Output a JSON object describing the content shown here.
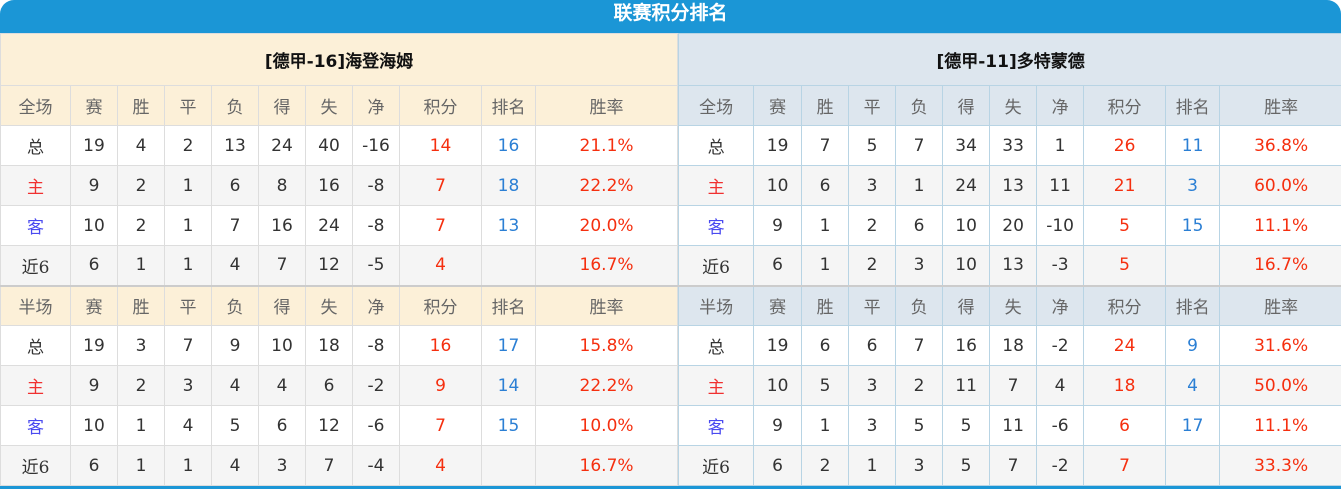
{
  "title": "联赛积分排名",
  "colors": {
    "brand": "#1b96d6",
    "points": "#f52f0f",
    "rank": "#2b7fd4"
  },
  "teams": [
    {
      "name": "[德甲-16]海登海姆",
      "full_header": [
        "全场",
        "赛",
        "胜",
        "平",
        "负",
        "得",
        "失",
        "净",
        "积分",
        "排名",
        "胜率"
      ],
      "full_rows": [
        [
          "总",
          "19",
          "4",
          "2",
          "13",
          "24",
          "40",
          "-16",
          "14",
          "16",
          "21.1%"
        ],
        [
          "主",
          "9",
          "2",
          "1",
          "6",
          "8",
          "16",
          "-8",
          "7",
          "18",
          "22.2%"
        ],
        [
          "客",
          "10",
          "2",
          "1",
          "7",
          "16",
          "24",
          "-8",
          "7",
          "13",
          "20.0%"
        ],
        [
          "近6",
          "6",
          "1",
          "1",
          "4",
          "7",
          "12",
          "-5",
          "4",
          "",
          "16.7%"
        ]
      ],
      "half_header": [
        "半场",
        "赛",
        "胜",
        "平",
        "负",
        "得",
        "失",
        "净",
        "积分",
        "排名",
        "胜率"
      ],
      "half_rows": [
        [
          "总",
          "19",
          "3",
          "7",
          "9",
          "10",
          "18",
          "-8",
          "16",
          "17",
          "15.8%"
        ],
        [
          "主",
          "9",
          "2",
          "3",
          "4",
          "4",
          "6",
          "-2",
          "9",
          "14",
          "22.2%"
        ],
        [
          "客",
          "10",
          "1",
          "4",
          "5",
          "6",
          "12",
          "-6",
          "7",
          "15",
          "10.0%"
        ],
        [
          "近6",
          "6",
          "1",
          "1",
          "4",
          "3",
          "7",
          "-4",
          "4",
          "",
          "16.7%"
        ]
      ]
    },
    {
      "name": "[德甲-11]多特蒙德",
      "full_header": [
        "全场",
        "赛",
        "胜",
        "平",
        "负",
        "得",
        "失",
        "净",
        "积分",
        "排名",
        "胜率"
      ],
      "full_rows": [
        [
          "总",
          "19",
          "7",
          "5",
          "7",
          "34",
          "33",
          "1",
          "26",
          "11",
          "36.8%"
        ],
        [
          "主",
          "10",
          "6",
          "3",
          "1",
          "24",
          "13",
          "11",
          "21",
          "3",
          "60.0%"
        ],
        [
          "客",
          "9",
          "1",
          "2",
          "6",
          "10",
          "20",
          "-10",
          "5",
          "15",
          "11.1%"
        ],
        [
          "近6",
          "6",
          "1",
          "2",
          "3",
          "10",
          "13",
          "-3",
          "5",
          "",
          "16.7%"
        ]
      ],
      "half_header": [
        "半场",
        "赛",
        "胜",
        "平",
        "负",
        "得",
        "失",
        "净",
        "积分",
        "排名",
        "胜率"
      ],
      "half_rows": [
        [
          "总",
          "19",
          "6",
          "6",
          "7",
          "16",
          "18",
          "-2",
          "24",
          "9",
          "31.6%"
        ],
        [
          "主",
          "10",
          "5",
          "3",
          "2",
          "11",
          "7",
          "4",
          "18",
          "4",
          "50.0%"
        ],
        [
          "客",
          "9",
          "1",
          "3",
          "5",
          "5",
          "11",
          "-6",
          "6",
          "17",
          "11.1%"
        ],
        [
          "近6",
          "6",
          "2",
          "1",
          "3",
          "5",
          "7",
          "-2",
          "7",
          "",
          "33.3%"
        ]
      ]
    }
  ]
}
